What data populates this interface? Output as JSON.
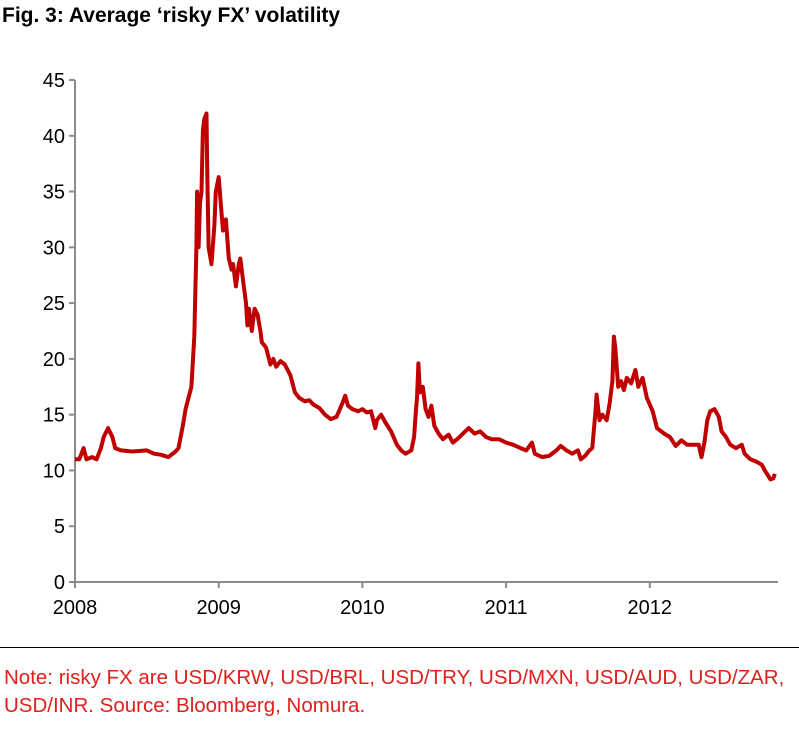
{
  "chart_data": {
    "type": "line",
    "title": "Fig. 3: Average ‘risky FX’ volatility",
    "xlabel": "",
    "ylabel": "",
    "xlim": [
      2008,
      2012.9
    ],
    "ylim": [
      0,
      45
    ],
    "yticks": [
      0,
      5,
      10,
      15,
      20,
      25,
      30,
      35,
      40,
      45
    ],
    "xticks": [
      2008,
      2009,
      2010,
      2011,
      2012
    ],
    "grid": false,
    "line_color": "#c00000",
    "series": [
      {
        "x": [
          2008.0,
          2008.03,
          2008.06,
          2008.08,
          2008.12,
          2008.15,
          2008.18,
          2008.2,
          2008.23,
          2008.26,
          2008.28,
          2008.32,
          2008.4,
          2008.5,
          2008.55,
          2008.6,
          2008.65,
          2008.7,
          2008.72,
          2008.75,
          2008.77,
          2008.79,
          2008.81,
          2008.83,
          2008.845,
          2008.85,
          2008.86,
          2008.87,
          2008.88,
          2008.89,
          2008.9,
          2008.915,
          2008.92,
          2008.93,
          2008.95,
          2008.97,
          2008.98,
          2009.0,
          2009.02,
          2009.03,
          2009.05,
          2009.07,
          2009.09,
          2009.1,
          2009.12,
          2009.14,
          2009.15,
          2009.17,
          2009.19,
          2009.2,
          2009.21,
          2009.23,
          2009.25,
          2009.27,
          2009.29,
          2009.3,
          2009.33,
          2009.36,
          2009.38,
          2009.4,
          2009.43,
          2009.46,
          2009.5,
          2009.53,
          2009.56,
          2009.6,
          2009.63,
          2009.66,
          2009.7,
          2009.74,
          2009.78,
          2009.82,
          2009.86,
          2009.88,
          2009.9,
          2009.93,
          2009.97,
          2010.0,
          2010.03,
          2010.06,
          2010.09,
          2010.1,
          2010.13,
          2010.16,
          2010.2,
          2010.24,
          2010.27,
          2010.3,
          2010.34,
          2010.36,
          2010.37,
          2010.38,
          2010.39,
          2010.4,
          2010.42,
          2010.44,
          2010.46,
          2010.48,
          2010.5,
          2010.53,
          2010.56,
          2010.6,
          2010.63,
          2010.66,
          2010.7,
          2010.74,
          2010.78,
          2010.82,
          2010.86,
          2010.9,
          2010.95,
          2011.0,
          2011.05,
          2011.1,
          2011.14,
          2011.18,
          2011.2,
          2011.25,
          2011.3,
          2011.35,
          2011.38,
          2011.42,
          2011.46,
          2011.5,
          2011.52,
          2011.55,
          2011.58,
          2011.6,
          2011.62,
          2011.63,
          2011.65,
          2011.67,
          2011.7,
          2011.72,
          2011.74,
          2011.75,
          2011.76,
          2011.78,
          2011.8,
          2011.82,
          2011.84,
          2011.87,
          2011.9,
          2011.92,
          2011.95,
          2011.98,
          2012.02,
          2012.05,
          2012.1,
          2012.14,
          2012.18,
          2012.22,
          2012.26,
          2012.3,
          2012.34,
          2012.36,
          2012.38,
          2012.4,
          2012.42,
          2012.45,
          2012.48,
          2012.5,
          2012.53,
          2012.56,
          2012.6,
          2012.64,
          2012.66,
          2012.7,
          2012.74,
          2012.78,
          2012.8,
          2012.84,
          2012.86,
          2012.87
        ],
        "y": [
          11,
          11,
          12,
          11,
          11.2,
          11,
          12,
          13,
          13.8,
          13,
          12,
          11.8,
          11.7,
          11.8,
          11.5,
          11.4,
          11.2,
          11.7,
          12,
          14,
          15.5,
          16.5,
          17.5,
          22,
          30,
          35,
          30,
          34,
          35,
          40.5,
          41.5,
          42,
          37,
          30,
          28.5,
          32,
          35,
          36.3,
          33,
          31.5,
          32.5,
          29,
          28,
          28.5,
          26.5,
          28.5,
          29,
          27,
          25,
          23,
          24.5,
          22.5,
          24.5,
          24,
          22.5,
          21.5,
          21,
          19.5,
          20,
          19.3,
          19.8,
          19.5,
          18.5,
          17,
          16.5,
          16.2,
          16.3,
          15.9,
          15.6,
          15,
          14.6,
          14.8,
          16,
          16.7,
          15.8,
          15.5,
          15.3,
          15.5,
          15.2,
          15.3,
          13.8,
          14.5,
          15,
          14.3,
          13.5,
          12.3,
          11.8,
          11.5,
          11.8,
          13,
          15,
          16.5,
          19.6,
          17,
          17.5,
          15.5,
          14.8,
          15.8,
          14,
          13.3,
          12.8,
          13.2,
          12.5,
          12.8,
          13.3,
          13.8,
          13.3,
          13.5,
          13,
          12.8,
          12.8,
          12.5,
          12.3,
          12,
          11.8,
          12.5,
          11.5,
          11.2,
          11.3,
          11.8,
          12.2,
          11.8,
          11.5,
          11.8,
          11,
          11.3,
          11.8,
          12,
          15,
          16.8,
          14.5,
          15,
          14.5,
          16,
          18,
          22,
          21,
          17.5,
          18,
          17.2,
          18.3,
          17.8,
          19,
          17.5,
          18.3,
          16.5,
          15.3,
          13.8,
          13.3,
          13,
          12.2,
          12.7,
          12.3,
          12.3,
          12.3,
          11.2,
          12.5,
          14.5,
          15.3,
          15.5,
          14.8,
          13.5,
          13,
          12.3,
          12,
          12.3,
          11.5,
          11,
          10.8,
          10.5,
          10,
          9.2,
          9.3,
          9.7
        ]
      }
    ]
  },
  "note": "Note: risky FX are USD/KRW, USD/BRL, USD/TRY, USD/MXN, USD/AUD, USD/ZAR, USD/INR. Source: Bloomberg, Nomura."
}
